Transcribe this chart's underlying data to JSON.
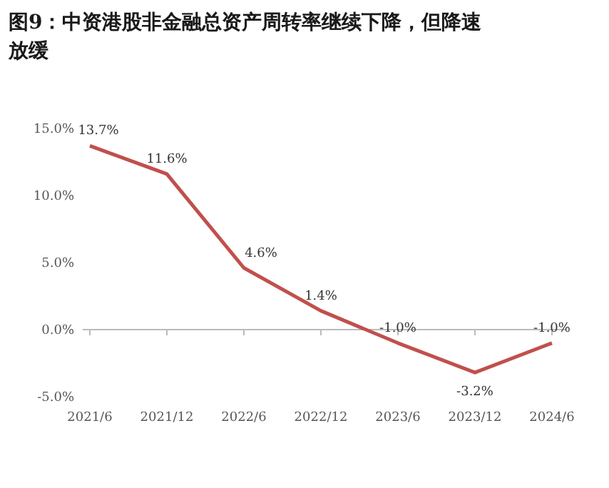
{
  "chart_data": {
    "type": "line",
    "title": "图9：中资港股非金融总资产周转率继续下降，但降速放缓",
    "categories": [
      "2021/6",
      "2021/12",
      "2022/6",
      "2022/12",
      "2023/6",
      "2023/12",
      "2024/6"
    ],
    "series": [
      {
        "color": "#c0504d",
        "values": [
          13.7,
          11.6,
          4.6,
          1.4,
          -1.0,
          -3.2,
          -1.0
        ],
        "value_labels": [
          "13.7%",
          "11.6%",
          "4.6%",
          "1.4%",
          "-1.0%",
          "-3.2%",
          "-1.0%"
        ]
      }
    ],
    "ylim": [
      -5,
      15
    ],
    "yticks": [
      {
        "value": -5,
        "label": "-5.0%"
      },
      {
        "value": 0,
        "label": "0.0%"
      },
      {
        "value": 5,
        "label": "5.0%"
      },
      {
        "value": 10,
        "label": "10.0%"
      },
      {
        "value": 15,
        "label": "15.0%"
      }
    ],
    "marker": "none",
    "line_style": "solid"
  }
}
